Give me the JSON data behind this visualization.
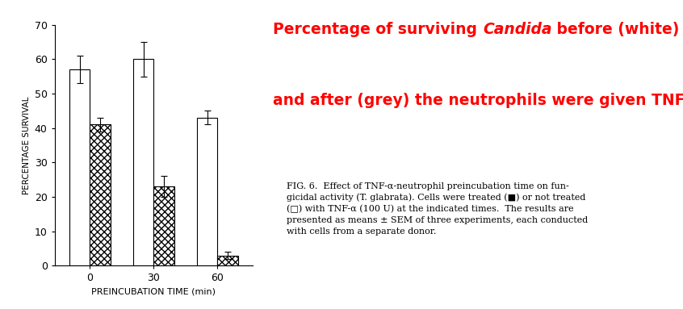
{
  "groups": [
    0,
    30,
    60
  ],
  "white_values": [
    57,
    60,
    43
  ],
  "grey_values": [
    41,
    23,
    3
  ],
  "white_errors": [
    4,
    5,
    2
  ],
  "grey_errors": [
    2,
    3,
    1
  ],
  "ylabel": "PERCENTAGE SURVIVAL",
  "xlabel": "PREINCUBATION TIME (min)",
  "ylim": [
    0,
    70
  ],
  "yticks": [
    0,
    10,
    20,
    30,
    40,
    50,
    60,
    70
  ],
  "bar_width": 0.32,
  "white_color": "#ffffff",
  "edge_color": "#000000",
  "background_color": "#ffffff",
  "title_seg1": "Percentage of surviving ",
  "title_seg2": "Candida",
  "title_seg3": " before (white)",
  "title_line2": "and after (grey) the neutrophils were given TNFα.",
  "title_color": "#ff0000",
  "title_fontsize": 13.5,
  "fig_caption_line1": "FIG. 6.  Effect of TNF-α-neutrophil preincubation time on fun-",
  "fig_caption_line2": "gicidal activity (T. glabrata). Cells were treated (■) or not treated",
  "fig_caption_line3": "(□) with TNF-α (100 U) at the indicated times.  The results are",
  "fig_caption_line4": "presented as means ± SEM of three experiments, each conducted",
  "fig_caption_line5": "with cells from a separate donor.",
  "caption_fontsize": 8.0
}
